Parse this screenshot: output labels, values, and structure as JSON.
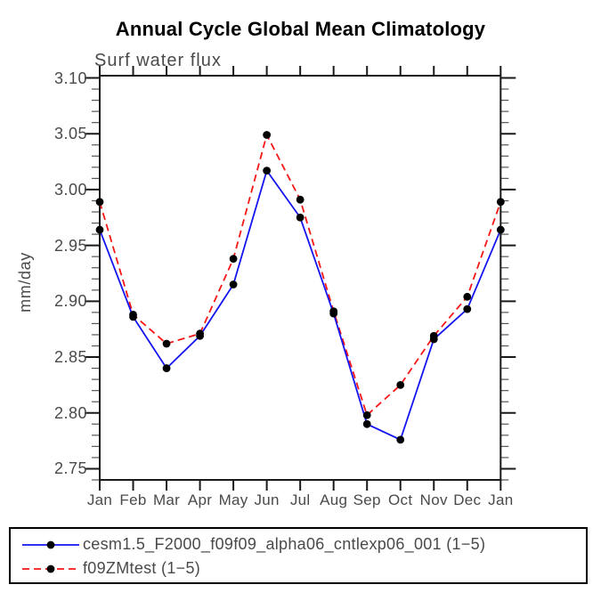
{
  "chart_data": {
    "type": "line",
    "title": "Annual Cycle Global Mean Climatology",
    "subtitle": "Surf water flux",
    "xlabel": "",
    "ylabel": "mm/day",
    "categories": [
      "Jan",
      "Feb",
      "Mar",
      "Apr",
      "May",
      "Jun",
      "Jul",
      "Aug",
      "Sep",
      "Oct",
      "Nov",
      "Dec",
      "Jan"
    ],
    "series": [
      {
        "name": "cesm1.5_F2000_f09f09_alpha06_cntlexp06_001 (1−5)",
        "color": "#1414f0",
        "style": "solid",
        "values": [
          2.964,
          2.886,
          2.84,
          2.869,
          2.915,
          3.017,
          2.975,
          2.889,
          2.79,
          2.776,
          2.866,
          2.893,
          2.964
        ]
      },
      {
        "name": "f09ZMtest (1−5)",
        "color": "#f51616",
        "style": "dashed",
        "values": [
          2.989,
          2.888,
          2.862,
          2.871,
          2.938,
          3.049,
          2.991,
          2.891,
          2.798,
          2.825,
          2.869,
          2.904,
          2.989
        ]
      }
    ],
    "yticks": [
      2.75,
      2.8,
      2.85,
      2.9,
      2.95,
      3.0,
      3.05,
      3.1
    ],
    "ytick_minor_step": 0.01,
    "ylim": [
      2.74,
      3.102
    ],
    "grid": false,
    "marker": "filled-circle",
    "marker_color": "#000000",
    "frame_color": "#1a1a1a",
    "text_color": "#4a4a4a",
    "legend_position": "bottom-left"
  }
}
